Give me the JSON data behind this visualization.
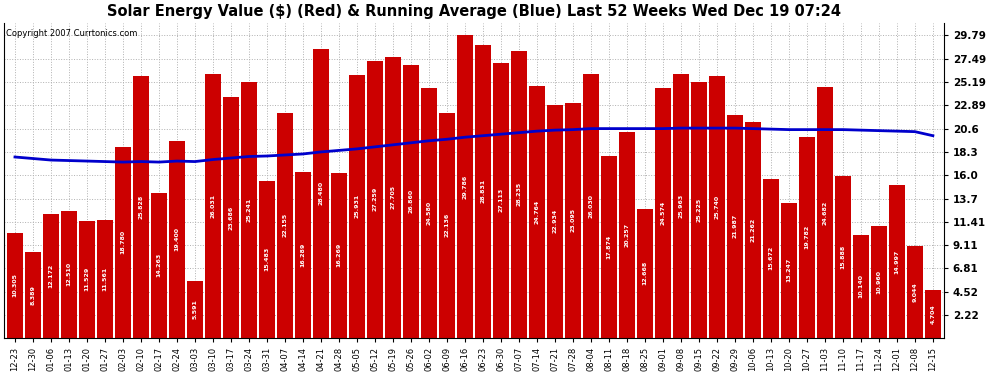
{
  "title": "Solar Energy Value ($) (Red) & Running Average (Blue) Last 52 Weeks Wed Dec 19 07:24",
  "copyright": "Copyright 2007 Currtonics.com",
  "bar_color": "#cc0000",
  "line_color": "#0000cc",
  "background_color": "#ffffff",
  "grid_color": "#b0b0b0",
  "yticks": [
    2.22,
    4.52,
    6.81,
    9.11,
    11.41,
    13.7,
    16.0,
    18.3,
    20.6,
    22.89,
    25.19,
    27.49,
    29.79
  ],
  "ylim": [
    0,
    31.0
  ],
  "xlabels": [
    "12-23",
    "12-30",
    "01-06",
    "01-13",
    "01-20",
    "01-27",
    "02-03",
    "02-10",
    "02-17",
    "02-24",
    "03-03",
    "03-10",
    "03-17",
    "03-24",
    "03-31",
    "04-07",
    "04-14",
    "04-21",
    "04-28",
    "05-05",
    "05-12",
    "05-19",
    "05-26",
    "06-02",
    "06-09",
    "06-16",
    "06-23",
    "06-30",
    "07-07",
    "07-14",
    "07-21",
    "07-28",
    "08-04",
    "08-11",
    "08-18",
    "08-25",
    "09-01",
    "09-08",
    "09-15",
    "09-22",
    "09-29",
    "10-06",
    "10-13",
    "10-20",
    "10-27",
    "11-03",
    "11-10",
    "11-17",
    "11-24",
    "12-01",
    "12-08",
    "12-15"
  ],
  "bar_values": [
    10.305,
    8.389,
    12.172,
    12.51,
    11.529,
    11.561,
    18.78,
    25.828,
    14.263,
    19.4,
    5.591,
    26.031,
    23.686,
    25.241,
    15.483,
    22.155,
    16.289,
    28.48,
    16.269,
    25.931,
    27.259,
    27.705,
    26.86,
    24.58,
    22.136,
    29.786,
    28.831,
    27.113,
    28.235,
    24.764,
    22.934,
    23.095,
    26.03,
    17.874,
    20.257,
    12.668,
    24.574,
    25.963,
    25.225,
    25.74,
    21.987,
    21.262,
    15.672,
    13.247,
    19.782,
    24.682,
    15.888,
    10.14,
    10.96,
    14.997,
    9.044,
    4.704
  ],
  "bar_labels": [
    "10.305",
    "8.389",
    "12.172",
    "12.510",
    "11.529",
    "11.561",
    "18.780",
    "25.828",
    "14.263",
    "19.400",
    "5.591",
    "26.031",
    "23.686",
    "25.241",
    "15.483",
    "22.155",
    "16.289",
    "28.480",
    "16.269",
    "25.931",
    "27.259",
    "27.705",
    "26.860",
    "24.580",
    "22.136",
    "29.786",
    "28.831",
    "27.113",
    "28.235",
    "24.764",
    "22.934",
    "23.095",
    "26.030",
    "17.874",
    "20.257",
    "12.668",
    "24.574",
    "25.963",
    "25.225",
    "25.740",
    "21.987",
    "21.262",
    "15.672",
    "13.247",
    "19.782",
    "24.682",
    "15.888",
    "10.140",
    "10.960",
    "14.997",
    "9.044",
    "4.704"
  ],
  "running_avg": [
    17.8,
    17.65,
    17.5,
    17.45,
    17.4,
    17.35,
    17.3,
    17.35,
    17.3,
    17.4,
    17.35,
    17.55,
    17.7,
    17.85,
    17.9,
    18.0,
    18.1,
    18.3,
    18.45,
    18.6,
    18.8,
    19.0,
    19.2,
    19.4,
    19.55,
    19.75,
    19.9,
    20.05,
    20.2,
    20.35,
    20.45,
    20.5,
    20.6,
    20.6,
    20.6,
    20.6,
    20.6,
    20.65,
    20.65,
    20.65,
    20.65,
    20.6,
    20.55,
    20.5,
    20.5,
    20.5,
    20.5,
    20.45,
    20.4,
    20.35,
    20.3,
    19.9
  ]
}
